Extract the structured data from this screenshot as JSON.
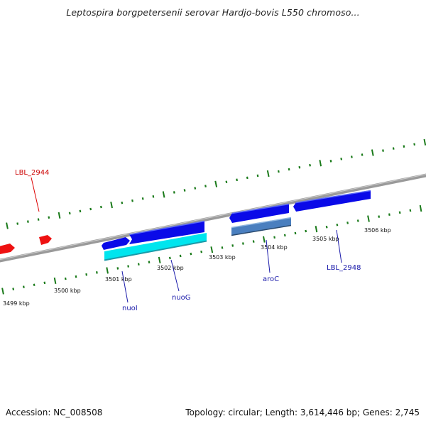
{
  "title": "Leptospira borgpetersenii serovar Hardjo-bovis L550 chromoso...",
  "footer": {
    "accession": "Accession: NC_008508",
    "stats": "Topology: circular; Length: 3,614,446 bp; Genes: 2,745"
  },
  "colors": {
    "forward_gene": "#0a0ae8",
    "reverse_gene_cyan": "#00e5ee",
    "reverse_gene_steel": "#4a7fbf",
    "other_gene_red": "#ee1111",
    "backbone": "#888888",
    "tick": "#1a7a1a",
    "label_blue": "#1a1aaa",
    "label_red": "#cc0000"
  },
  "scale_labels": [
    "3499 kbp",
    "3500 kbp",
    "3501 kbp",
    "3502 kbp",
    "3503 kbp",
    "3504 kbp",
    "3505 kbp",
    "3506 kbp"
  ],
  "gene_labels": [
    {
      "name": "LBL_2944",
      "color": "red"
    },
    {
      "name": "nuoI",
      "color": "blue"
    },
    {
      "name": "nuoG",
      "color": "blue"
    },
    {
      "name": "aroC",
      "color": "blue"
    },
    {
      "name": "LBL_2948",
      "color": "blue"
    }
  ]
}
